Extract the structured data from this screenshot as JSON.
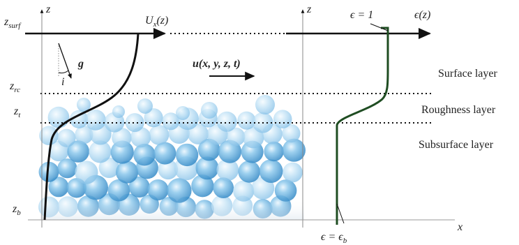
{
  "left_axis": {
    "z_label": "z",
    "z_surf": "z_surf",
    "z_rc": "z_rc",
    "z_t": "z_t",
    "z_b": "z_b",
    "ux_label": "U_x(z)",
    "g_label": "g",
    "i_label": "i",
    "u_label": "u(x, y, z, t)"
  },
  "layers": {
    "surface": "Surface layer",
    "roughness": "Roughness layer",
    "subsurface": "Subsurface layer"
  },
  "right_axis": {
    "z_label": "z",
    "x_label": "x",
    "eps_top": "ϵ = 1",
    "eps_z": "ϵ(z)",
    "eps_bottom": "ϵ = ϵ_b"
  },
  "colors": {
    "velocity_profile": "#111111",
    "porosity_profile": "#1f4d22",
    "sphere_fill": "#4ea3d8",
    "sphere_light": "#cfe7f6"
  }
}
